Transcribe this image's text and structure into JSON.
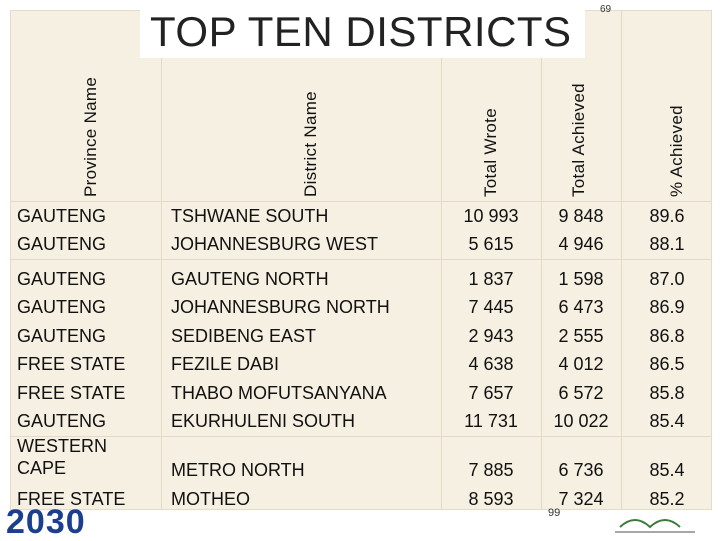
{
  "title": "TOP TEN DISTRICTS",
  "page_number_top": "69",
  "page_number_bottom": "99",
  "logo": "2030",
  "table": {
    "header": [
      "Province Name",
      "District Name",
      "Total Wrote",
      "Total Achieved",
      "% Achieved"
    ],
    "rows": [
      [
        "GAUTENG",
        "TSHWANE SOUTH",
        "10 993",
        "9 848",
        "89.6"
      ],
      [
        "GAUTENG",
        "JOHANNESBURG WEST",
        "5 615",
        "4 946",
        "88.1"
      ],
      [
        "GAUTENG",
        "GAUTENG NORTH",
        "1 837",
        "1 598",
        "87.0"
      ],
      [
        "GAUTENG",
        "JOHANNESBURG NORTH",
        "7 445",
        "6 473",
        "86.9"
      ],
      [
        "GAUTENG",
        "SEDIBENG EAST",
        "2 943",
        "2 555",
        "86.8"
      ],
      [
        "FREE STATE",
        "FEZILE DABI",
        "4 638",
        "4 012",
        "86.5"
      ],
      [
        "FREE STATE",
        "THABO MOFUTSANYANA",
        "7 657",
        "6 572",
        "85.8"
      ],
      [
        "GAUTENG",
        "EKURHULENI SOUTH",
        "11 731",
        "10 022",
        "85.4"
      ],
      [
        "WESTERN CAPE",
        "METRO NORTH",
        "7 885",
        "6 736",
        "85.4"
      ],
      [
        "FREE STATE",
        "MOTHEO",
        "8 593",
        "7 324",
        "85.2"
      ]
    ]
  }
}
